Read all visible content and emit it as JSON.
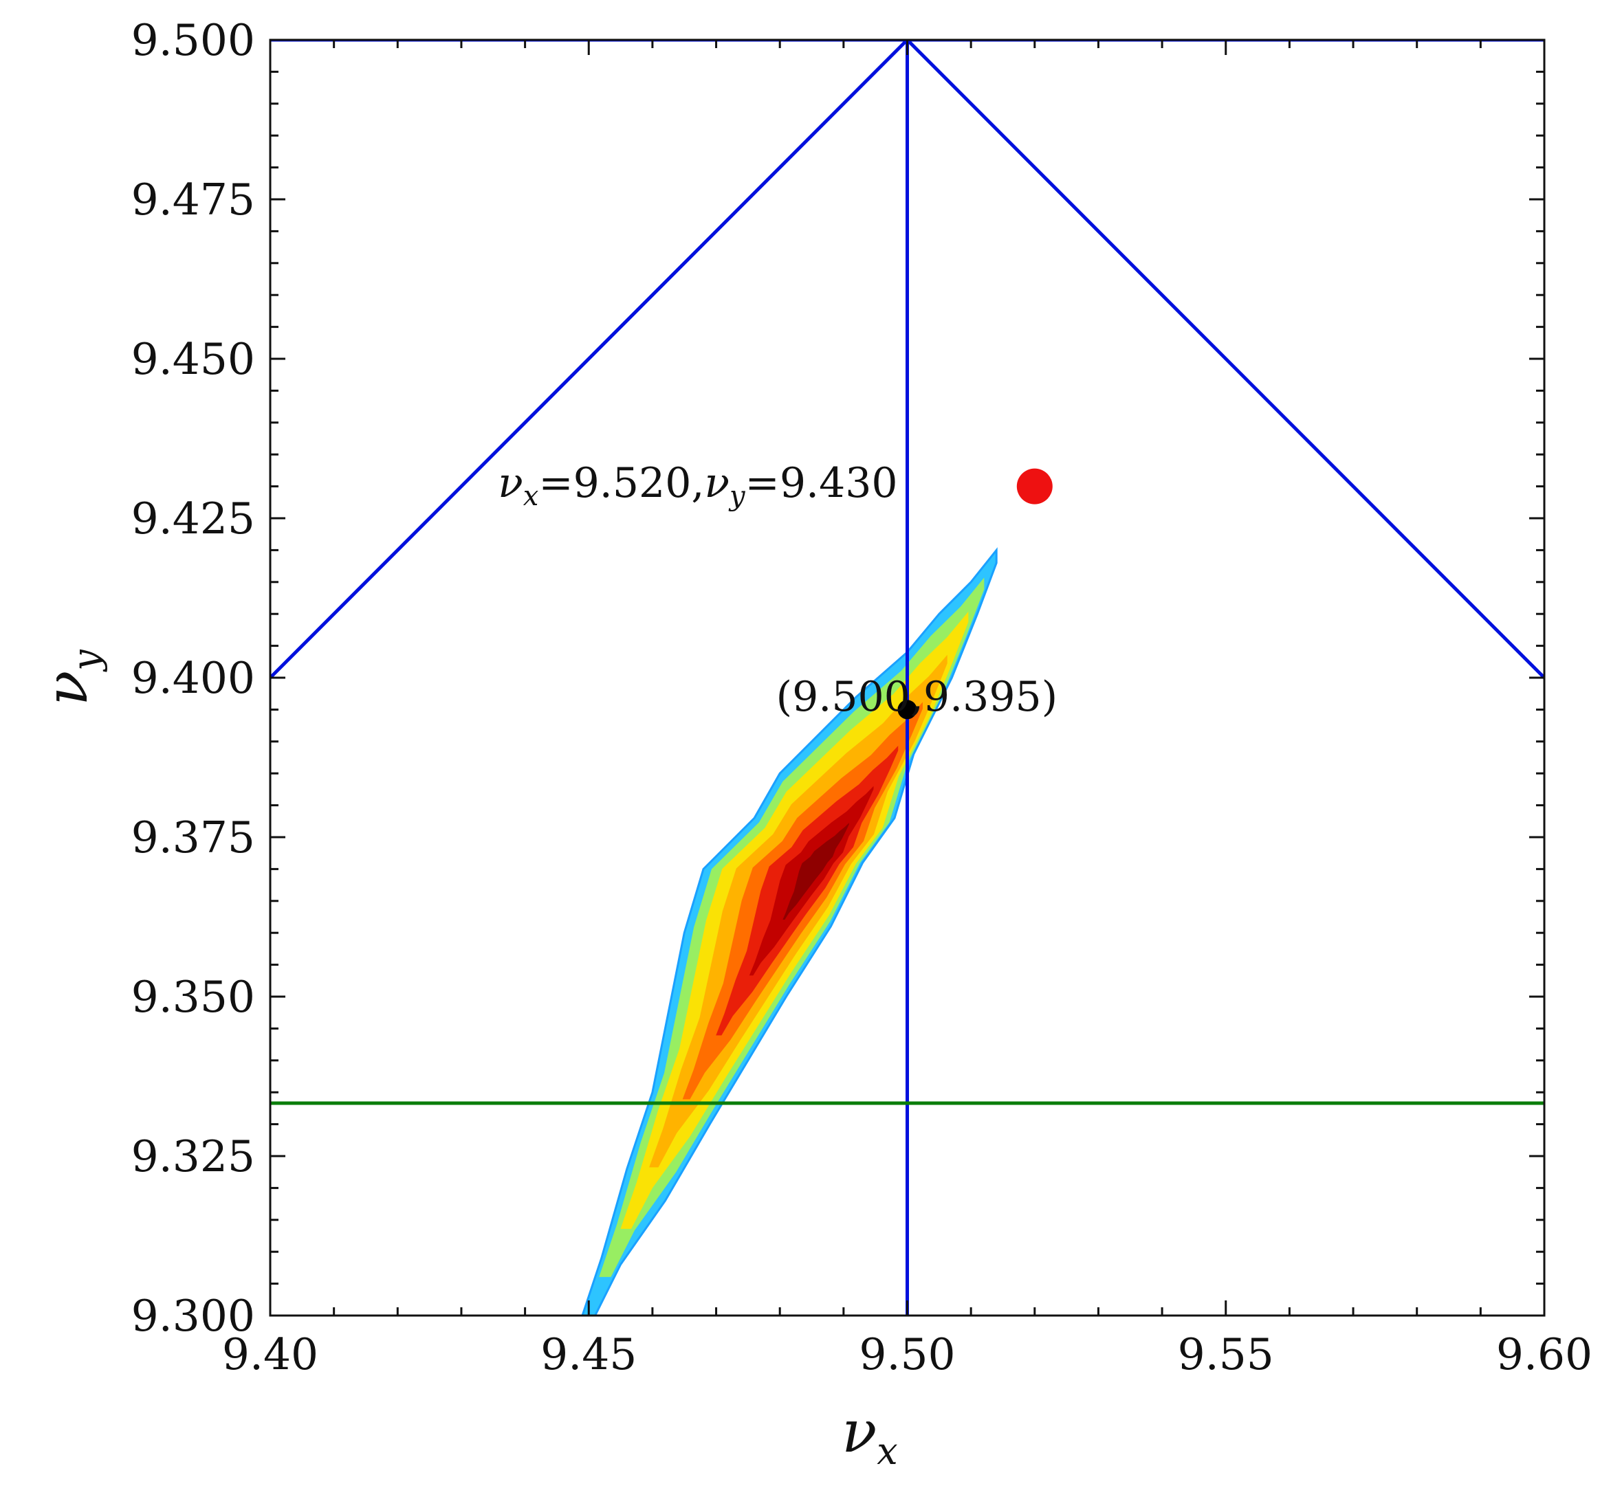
{
  "chart_data": {
    "type": "scatter",
    "xlabel": {
      "base": "ν",
      "sub": "x"
    },
    "ylabel": {
      "base": "ν",
      "sub": "y"
    },
    "xlim": [
      9.4,
      9.6
    ],
    "ylim": [
      9.3,
      9.5
    ],
    "x_ticks": [
      "9.40",
      "9.45",
      "9.50",
      "9.55",
      "9.60"
    ],
    "y_ticks": [
      "9.300",
      "9.325",
      "9.350",
      "9.375",
      "9.400",
      "9.425",
      "9.450",
      "9.475",
      "9.500"
    ],
    "resonance_lines": [
      {
        "color": "#0010dd",
        "x": [
          9.4,
          9.6
        ],
        "y": [
          9.5,
          9.5
        ]
      },
      {
        "color": "#0010dd",
        "x": [
          9.4,
          9.5
        ],
        "y": [
          9.4,
          9.5
        ]
      },
      {
        "color": "#0010dd",
        "x": [
          9.5,
          9.6
        ],
        "y": [
          9.5,
          9.4
        ]
      },
      {
        "color": "#0010dd",
        "x": [
          9.5,
          9.5
        ],
        "y": [
          9.3,
          9.5
        ]
      },
      {
        "color": "#0a7d0a",
        "x": [
          9.4,
          9.6
        ],
        "y": [
          9.3333,
          9.3333
        ]
      }
    ],
    "tune_footprint": {
      "colormap": "jet",
      "center_line": [
        [
          9.449,
          9.3
        ],
        [
          9.46,
          9.32
        ],
        [
          9.47,
          9.34
        ],
        [
          9.48,
          9.36
        ],
        [
          9.49,
          9.38
        ],
        [
          9.5,
          9.398
        ],
        [
          9.514,
          9.42
        ]
      ],
      "outline": [
        [
          9.449,
          9.3
        ],
        [
          9.452,
          9.309
        ],
        [
          9.456,
          9.323
        ],
        [
          9.46,
          9.335
        ],
        [
          9.463,
          9.35
        ],
        [
          9.465,
          9.36
        ],
        [
          9.468,
          9.37
        ],
        [
          9.476,
          9.378
        ],
        [
          9.48,
          9.385
        ],
        [
          9.485,
          9.39
        ],
        [
          9.492,
          9.397
        ],
        [
          9.5,
          9.404
        ],
        [
          9.505,
          9.41
        ],
        [
          9.51,
          9.415
        ],
        [
          9.514,
          9.42
        ],
        [
          9.514,
          9.418
        ],
        [
          9.511,
          9.41
        ],
        [
          9.507,
          9.4
        ],
        [
          9.501,
          9.388
        ],
        [
          9.498,
          9.378
        ],
        [
          9.493,
          9.371
        ],
        [
          9.488,
          9.361
        ],
        [
          9.481,
          9.35
        ],
        [
          9.475,
          9.34
        ],
        [
          9.469,
          9.33
        ],
        [
          9.462,
          9.318
        ],
        [
          9.455,
          9.308
        ],
        [
          9.451,
          9.3
        ]
      ]
    },
    "points": [
      {
        "name": "working-point",
        "x": 9.52,
        "y": 9.43,
        "color": "#ee1111"
      },
      {
        "name": "footprint-center",
        "x": 9.5,
        "y": 9.395,
        "color": "#000000"
      }
    ],
    "annotations": [
      {
        "text": "(9.500,9.395)",
        "x": 9.5015,
        "y": 9.397
      },
      {
        "text": "ν_x=9.520,ν_y=9.430",
        "x": 9.4985,
        "y": 9.4305
      }
    ]
  },
  "annotation_math": {
    "nu": "ν",
    "x": "x",
    "y": "y",
    "eq_nx": "=9.520,",
    "eq_ny": "=9.430"
  }
}
